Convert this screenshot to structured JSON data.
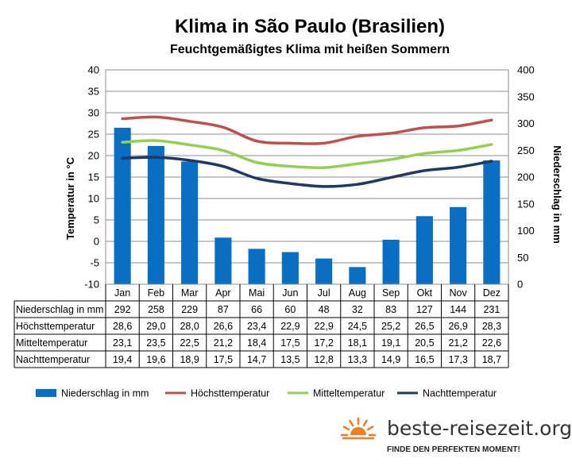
{
  "chart_data": {
    "type": "bar",
    "title": "Klima in São Paulo (Brasilien)",
    "subtitle": "Feuchtgemäßigtes Klima mit heißen Sommern",
    "ylabel_left": "Temperatur in °C",
    "ylabel_right": "Niederschlag in mm",
    "ylim_left": [
      -10,
      40
    ],
    "ylim_right": [
      0,
      400
    ],
    "yticks_left": [
      "-10",
      "-5",
      "0",
      "5",
      "10",
      "15",
      "20",
      "25",
      "30",
      "35",
      "40"
    ],
    "yticks_right": [
      "0",
      "50",
      "100",
      "150",
      "200",
      "250",
      "300",
      "350",
      "400"
    ],
    "grid": true,
    "legend_position": "bottom",
    "categories": [
      "Jan",
      "Feb",
      "Mar",
      "Apr",
      "Mai",
      "Jun",
      "Jul",
      "Aug",
      "Sep",
      "Okt",
      "Nov",
      "Dez"
    ],
    "series": [
      {
        "name": "Niederschlag in mm",
        "type": "bar",
        "axis": "right",
        "color": "#0a6fc2",
        "values": [
          292,
          258,
          229,
          87,
          66,
          60,
          48,
          32,
          83,
          127,
          144,
          231
        ],
        "labels": [
          "292",
          "258",
          "229",
          "87",
          "66",
          "60",
          "48",
          "32",
          "83",
          "127",
          "144",
          "231"
        ]
      },
      {
        "name": "Höchsttemperatur",
        "type": "line",
        "axis": "left",
        "color": "#c0504d",
        "values": [
          28.6,
          29.0,
          28.0,
          26.6,
          23.4,
          22.9,
          22.9,
          24.5,
          25.2,
          26.5,
          26.9,
          28.3
        ],
        "labels": [
          "28,6",
          "29,0",
          "28,0",
          "26,6",
          "23,4",
          "22,9",
          "22,9",
          "24,5",
          "25,2",
          "26,5",
          "26,9",
          "28,3"
        ]
      },
      {
        "name": "Mitteltemperatur",
        "type": "line",
        "axis": "left",
        "color": "#92d050",
        "values": [
          23.1,
          23.5,
          22.5,
          21.2,
          18.4,
          17.5,
          17.2,
          18.1,
          19.1,
          20.5,
          21.2,
          22.6
        ],
        "labels": [
          "23,1",
          "23,5",
          "22,5",
          "21,2",
          "18,4",
          "17,5",
          "17,2",
          "18,1",
          "19,1",
          "20,5",
          "21,2",
          "22,6"
        ]
      },
      {
        "name": "Nachttemperatur",
        "type": "line",
        "axis": "left",
        "color": "#1f3864",
        "values": [
          19.4,
          19.6,
          18.9,
          17.5,
          14.7,
          13.5,
          12.8,
          13.3,
          14.9,
          16.5,
          17.3,
          18.7
        ],
        "labels": [
          "19,4",
          "19,6",
          "18,9",
          "17,5",
          "14,7",
          "13,5",
          "12,8",
          "13,3",
          "14,9",
          "16,5",
          "17,3",
          "18,7"
        ]
      }
    ]
  },
  "brand": {
    "name": "beste-reisezeit.org",
    "tagline": "FINDE DEN PERFEKTEN MOMENT!",
    "sun_icon": "sun-icon",
    "sun_color": "#f47b20"
  }
}
